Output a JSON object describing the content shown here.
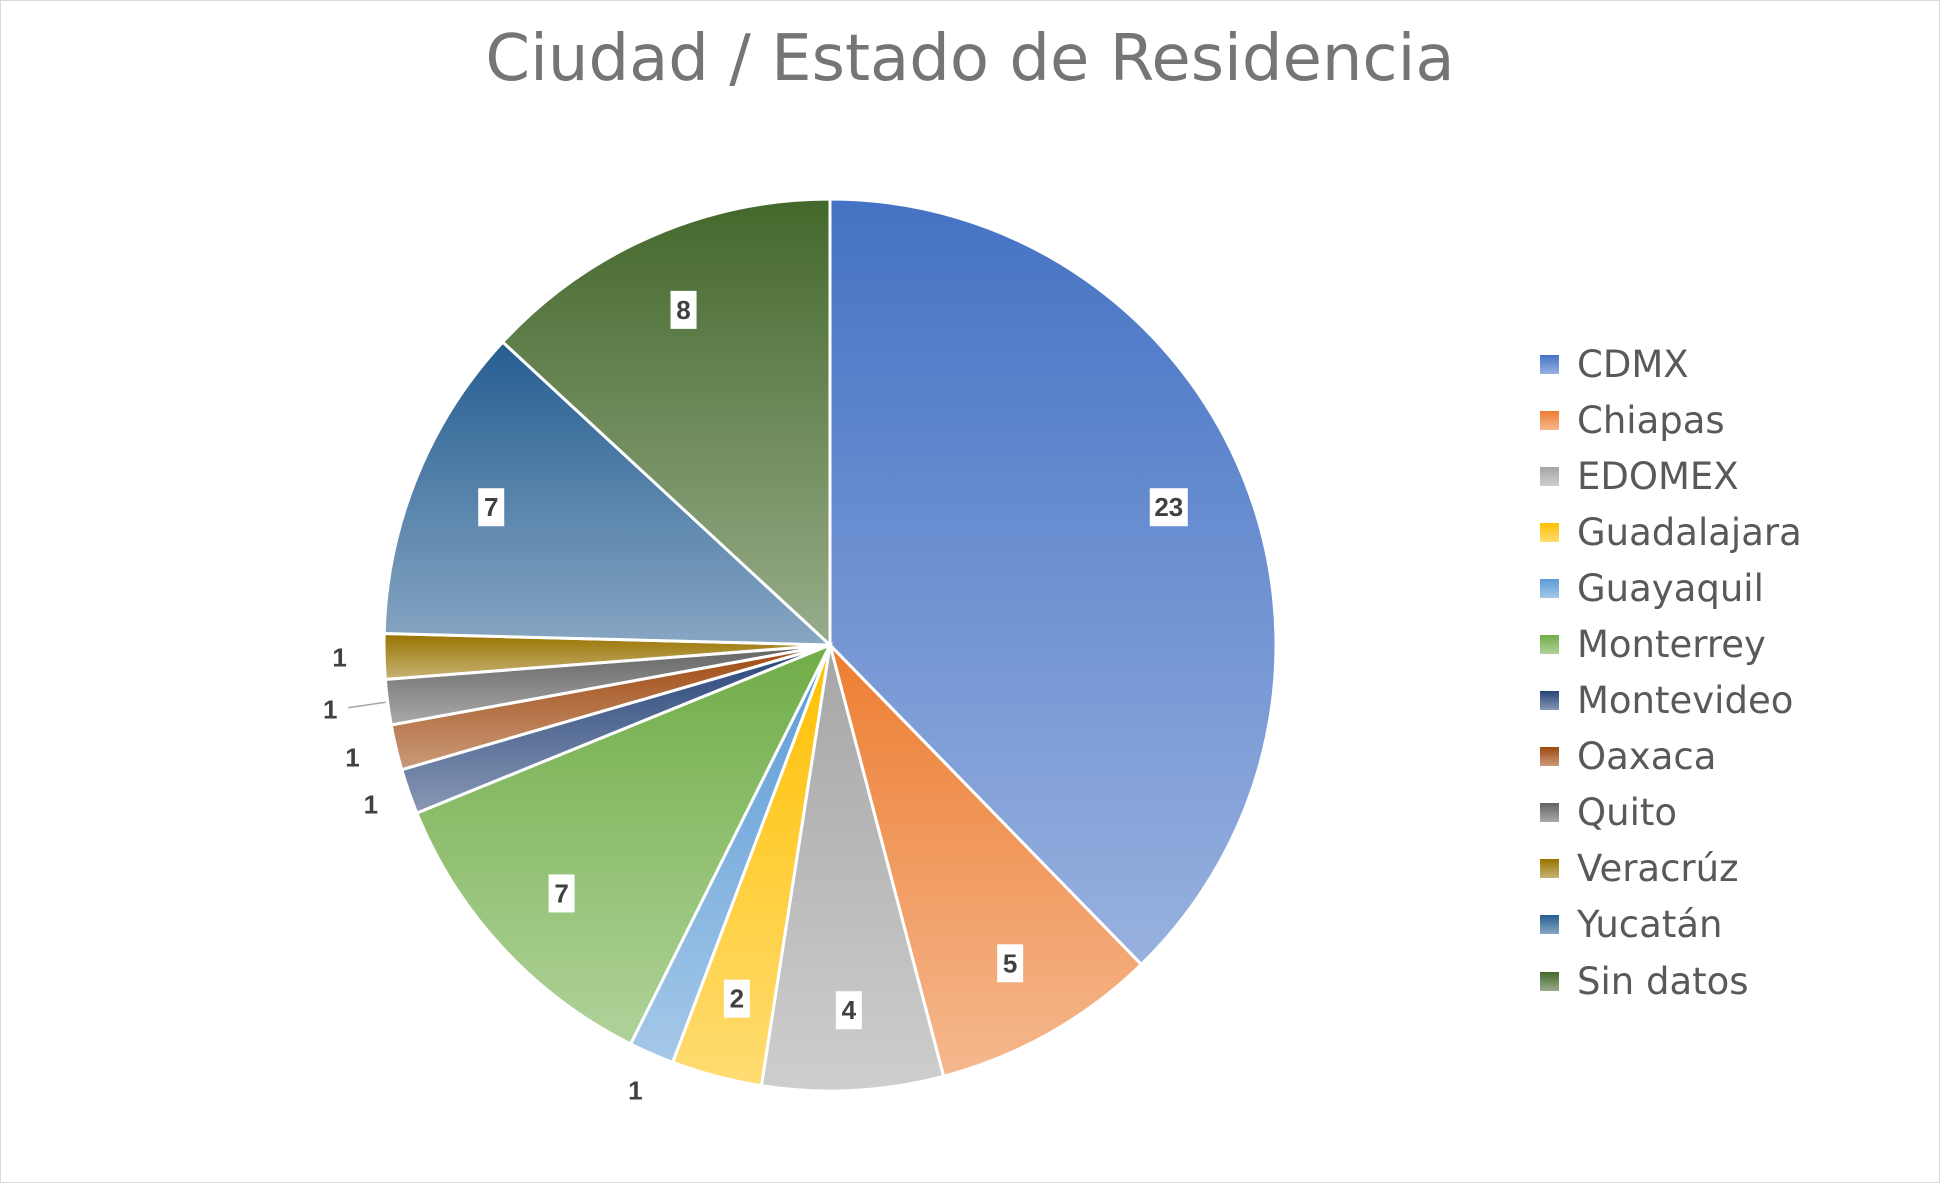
{
  "chart_data": {
    "type": "pie",
    "title": "Ciudad / Estado de Residencia",
    "categories": [
      "CDMX",
      "Chiapas",
      "EDOMEX",
      "Guadalajara",
      "Guayaquil",
      "Monterrey",
      "Montevideo",
      "Oaxaca",
      "Quito",
      "Veracrúz",
      "Yucatán",
      "Sin datos"
    ],
    "values": [
      23,
      5,
      4,
      2,
      1,
      7,
      1,
      1,
      1,
      1,
      7,
      8
    ],
    "labels": [
      "23",
      "5",
      "4",
      "2",
      "1",
      "7",
      "1",
      "1",
      "1",
      "1",
      "7",
      "8"
    ],
    "colors": [
      "#4472c4",
      "#ed7d31",
      "#a5a5a5",
      "#ffc000",
      "#5b9bd5",
      "#70ad47",
      "#264478",
      "#9e480e",
      "#636363",
      "#997300",
      "#255e91",
      "#43682b"
    ],
    "legend_position": "right"
  }
}
